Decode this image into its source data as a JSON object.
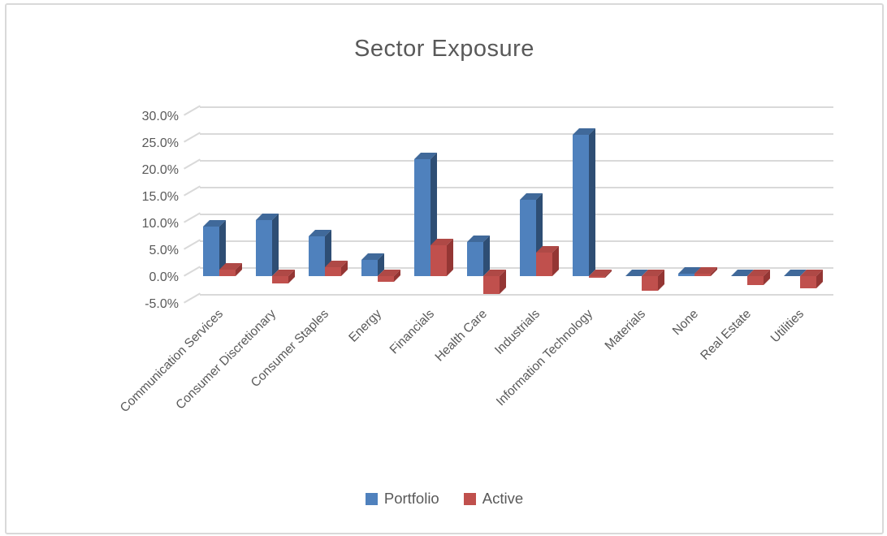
{
  "chart_data": {
    "type": "bar",
    "variant": "3d-clustered-column",
    "title": "Sector Exposure",
    "xlabel": "",
    "ylabel": "",
    "categories": [
      "Communication Services",
      "Consumer Discretionary",
      "Consumer Staples",
      "Energy",
      "Financials",
      "Health Care",
      "Industrials",
      "Information Technology",
      "Materials",
      "None",
      "Real Estate",
      "Utilities"
    ],
    "series": [
      {
        "name": "Portfolio",
        "color": "#4F81BD",
        "values": [
          9.3,
          10.4,
          7.4,
          3.0,
          21.8,
          6.4,
          14.2,
          26.3,
          0.0,
          0.5,
          0.0,
          0.0
        ]
      },
      {
        "name": "Active",
        "color": "#C0504D",
        "values": [
          1.2,
          -1.4,
          1.6,
          -1.1,
          5.8,
          -3.3,
          4.4,
          -0.3,
          -2.7,
          0.4,
          -1.6,
          -2.2
        ]
      }
    ],
    "y_axis": {
      "min": -5,
      "max": 30,
      "step": 5,
      "unit": "%",
      "tick_labels": [
        "30.0%",
        "25.0%",
        "20.0%",
        "15.0%",
        "10.0%",
        "5.0%",
        "0.0%",
        "-5.0%"
      ]
    },
    "grid": true,
    "legend_position": "bottom"
  },
  "colors": {
    "blue_front": "#4F81BD",
    "blue_side": "#2E4E74",
    "blue_top": "#40699A",
    "red_front": "#C0504D",
    "red_side": "#943634",
    "red_top": "#AF4946",
    "gridline": "#D9D9D9",
    "text": "#595959",
    "frame_border": "#D9D9D9"
  }
}
